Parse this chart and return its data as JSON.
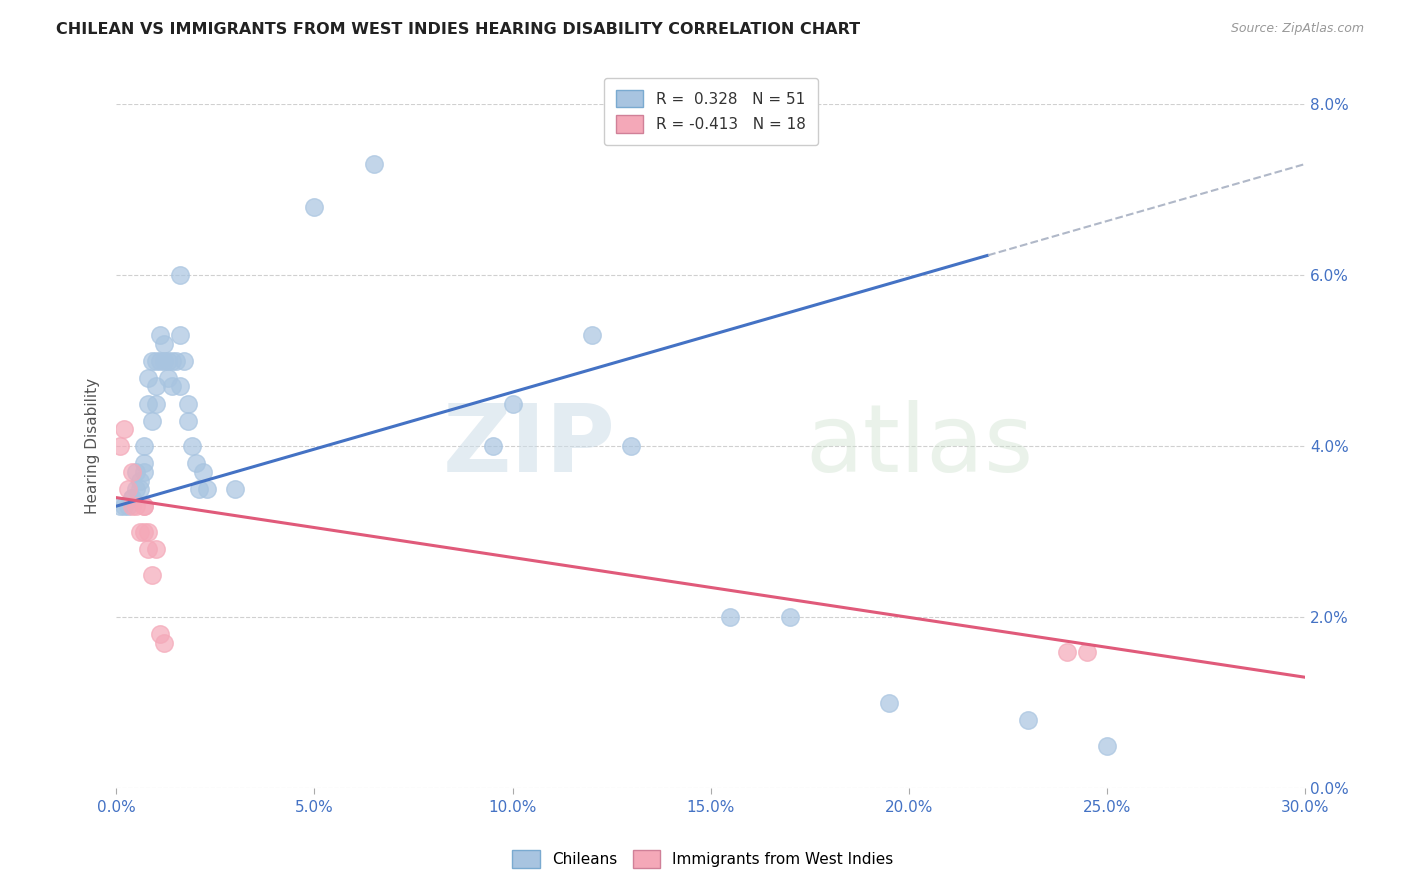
{
  "title": "CHILEAN VS IMMIGRANTS FROM WEST INDIES HEARING DISABILITY CORRELATION CHART",
  "source": "Source: ZipAtlas.com",
  "xlabel_ticks": [
    "0.0%",
    "5.0%",
    "10.0%",
    "15.0%",
    "20.0%",
    "25.0%",
    "30.0%"
  ],
  "xlabel_values": [
    0.0,
    0.05,
    0.1,
    0.15,
    0.2,
    0.25,
    0.3
  ],
  "ylabel_ticks": [
    "0.0%",
    "2.0%",
    "4.0%",
    "6.0%",
    "8.0%"
  ],
  "ylabel_values": [
    0.0,
    0.02,
    0.04,
    0.06,
    0.08
  ],
  "xlim": [
    0.0,
    0.3
  ],
  "ylim": [
    0.0,
    0.08
  ],
  "chilean_color": "#a8c4e0",
  "west_indies_color": "#f4a8b8",
  "trend_chilean_color": "#4472c4",
  "trend_west_indies_color": "#e05a7a",
  "trend_extension_color": "#b0b8c8",
  "ylabel": "Hearing Disability",
  "chileans_scatter": [
    [
      0.001,
      0.033
    ],
    [
      0.002,
      0.033
    ],
    [
      0.003,
      0.033
    ],
    [
      0.004,
      0.034
    ],
    [
      0.004,
      0.034
    ],
    [
      0.005,
      0.035
    ],
    [
      0.005,
      0.037
    ],
    [
      0.006,
      0.035
    ],
    [
      0.006,
      0.036
    ],
    [
      0.007,
      0.038
    ],
    [
      0.007,
      0.037
    ],
    [
      0.007,
      0.04
    ],
    [
      0.008,
      0.045
    ],
    [
      0.008,
      0.048
    ],
    [
      0.009,
      0.05
    ],
    [
      0.009,
      0.043
    ],
    [
      0.01,
      0.045
    ],
    [
      0.01,
      0.047
    ],
    [
      0.01,
      0.05
    ],
    [
      0.011,
      0.05
    ],
    [
      0.011,
      0.053
    ],
    [
      0.012,
      0.05
    ],
    [
      0.012,
      0.052
    ],
    [
      0.013,
      0.048
    ],
    [
      0.013,
      0.05
    ],
    [
      0.014,
      0.05
    ],
    [
      0.014,
      0.047
    ],
    [
      0.015,
      0.05
    ],
    [
      0.016,
      0.047
    ],
    [
      0.016,
      0.053
    ],
    [
      0.016,
      0.06
    ],
    [
      0.017,
      0.05
    ],
    [
      0.018,
      0.045
    ],
    [
      0.018,
      0.043
    ],
    [
      0.019,
      0.04
    ],
    [
      0.02,
      0.038
    ],
    [
      0.021,
      0.035
    ],
    [
      0.022,
      0.037
    ],
    [
      0.023,
      0.035
    ],
    [
      0.03,
      0.035
    ],
    [
      0.05,
      0.068
    ],
    [
      0.065,
      0.073
    ],
    [
      0.095,
      0.04
    ],
    [
      0.1,
      0.045
    ],
    [
      0.12,
      0.053
    ],
    [
      0.13,
      0.04
    ],
    [
      0.155,
      0.02
    ],
    [
      0.17,
      0.02
    ],
    [
      0.195,
      0.01
    ],
    [
      0.23,
      0.008
    ],
    [
      0.25,
      0.005
    ]
  ],
  "west_indies_scatter": [
    [
      0.001,
      0.04
    ],
    [
      0.002,
      0.042
    ],
    [
      0.003,
      0.035
    ],
    [
      0.004,
      0.037
    ],
    [
      0.004,
      0.033
    ],
    [
      0.005,
      0.033
    ],
    [
      0.006,
      0.03
    ],
    [
      0.007,
      0.033
    ],
    [
      0.007,
      0.033
    ],
    [
      0.007,
      0.03
    ],
    [
      0.008,
      0.03
    ],
    [
      0.008,
      0.028
    ],
    [
      0.009,
      0.025
    ],
    [
      0.01,
      0.028
    ],
    [
      0.011,
      0.018
    ],
    [
      0.012,
      0.017
    ],
    [
      0.24,
      0.016
    ],
    [
      0.245,
      0.016
    ]
  ],
  "background_color": "#ffffff",
  "grid_color": "#d0d0d0",
  "watermark_zip": "ZIP",
  "watermark_atlas": "atlas",
  "trend_chilean_start_x": 0.0,
  "trend_chilean_solid_end_x": 0.22,
  "trend_chilean_end_x": 0.3,
  "trend_chilean_start_y": 0.033,
  "trend_chilean_mid_y": 0.05,
  "trend_chilean_end_y": 0.073,
  "trend_wi_start_x": 0.0,
  "trend_wi_end_x": 0.3,
  "trend_wi_start_y": 0.034,
  "trend_wi_end_y": 0.013
}
